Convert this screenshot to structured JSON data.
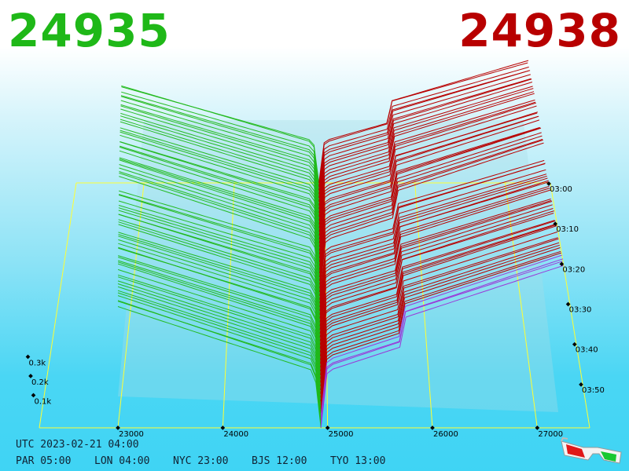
{
  "header": {
    "bid_price": "24935",
    "ask_price": "24938"
  },
  "footer": {
    "utc": "UTC 2023-02-21 04:00",
    "cities": [
      {
        "label": "PAR 05:00"
      },
      {
        "label": "LON 04:00"
      },
      {
        "label": "NYC 23:00"
      },
      {
        "label": "BJS 12:00"
      },
      {
        "label": "TYO 13:00"
      }
    ]
  },
  "colors": {
    "bid": "#1fb818",
    "ask": "#b80000",
    "depth_line": "#9a38d8",
    "grid": "#ffff33"
  },
  "icons": {
    "glasses": "3d-glasses-icon"
  },
  "chart_data": {
    "type": "area",
    "title": "",
    "x_axis": {
      "label": "",
      "ticks": [
        "23000",
        "24000",
        "25000",
        "26000",
        "27000"
      ]
    },
    "y_axis": {
      "label": "",
      "ticks": [
        "0.1k",
        "0.2k",
        "0.3k"
      ]
    },
    "time_axis": {
      "label": "",
      "ticks": [
        "03:00",
        "03:10",
        "03:20",
        "03:30",
        "03:40",
        "03:50"
      ]
    },
    "mid_price_range": [
      24935,
      24938
    ],
    "series": [
      {
        "name": "",
        "side": "bid"
      },
      {
        "name": "",
        "side": "ask"
      }
    ]
  }
}
